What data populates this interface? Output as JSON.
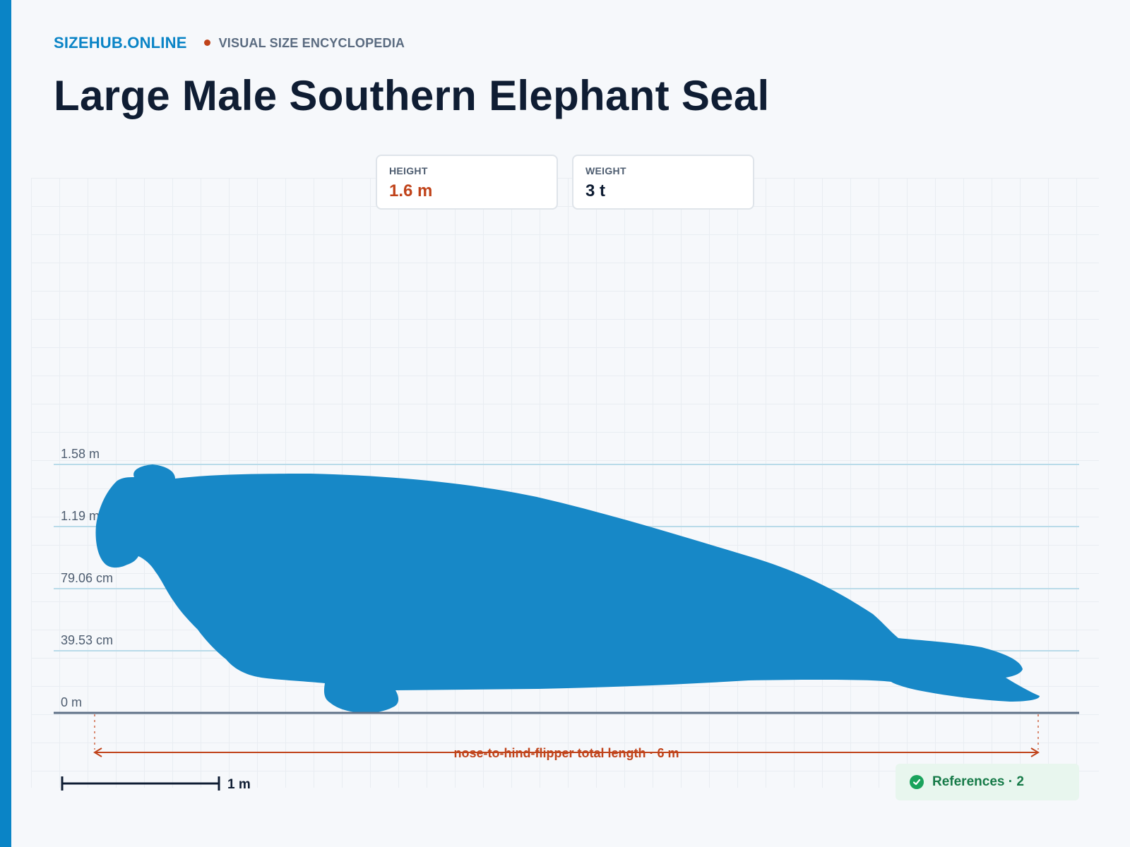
{
  "brand": {
    "name": "SIZEHUB.ONLINE",
    "tagline": "VISUAL SIZE ENCYCLOPEDIA"
  },
  "title": "Large Male Southern Elephant Seal",
  "stats": [
    {
      "label": "HEIGHT",
      "value": "1.6 m"
    },
    {
      "label": "WEIGHT",
      "value": "3 t"
    }
  ],
  "chart": {
    "height_labels": [
      "1.58 m",
      "1.19 m",
      "79.06 cm",
      "39.53 cm",
      "0 m"
    ],
    "length_label": "nose-to-hind-flipper total length · 6 m",
    "scale_label": "1 m"
  },
  "references": {
    "label": "References · 2",
    "count": 2
  },
  "colors": {
    "accent": "#0a84c6",
    "silhouette": "#1788c7",
    "measure": "#c0431a",
    "references_bg": "#e8f6ee",
    "references_text": "#167a48"
  }
}
